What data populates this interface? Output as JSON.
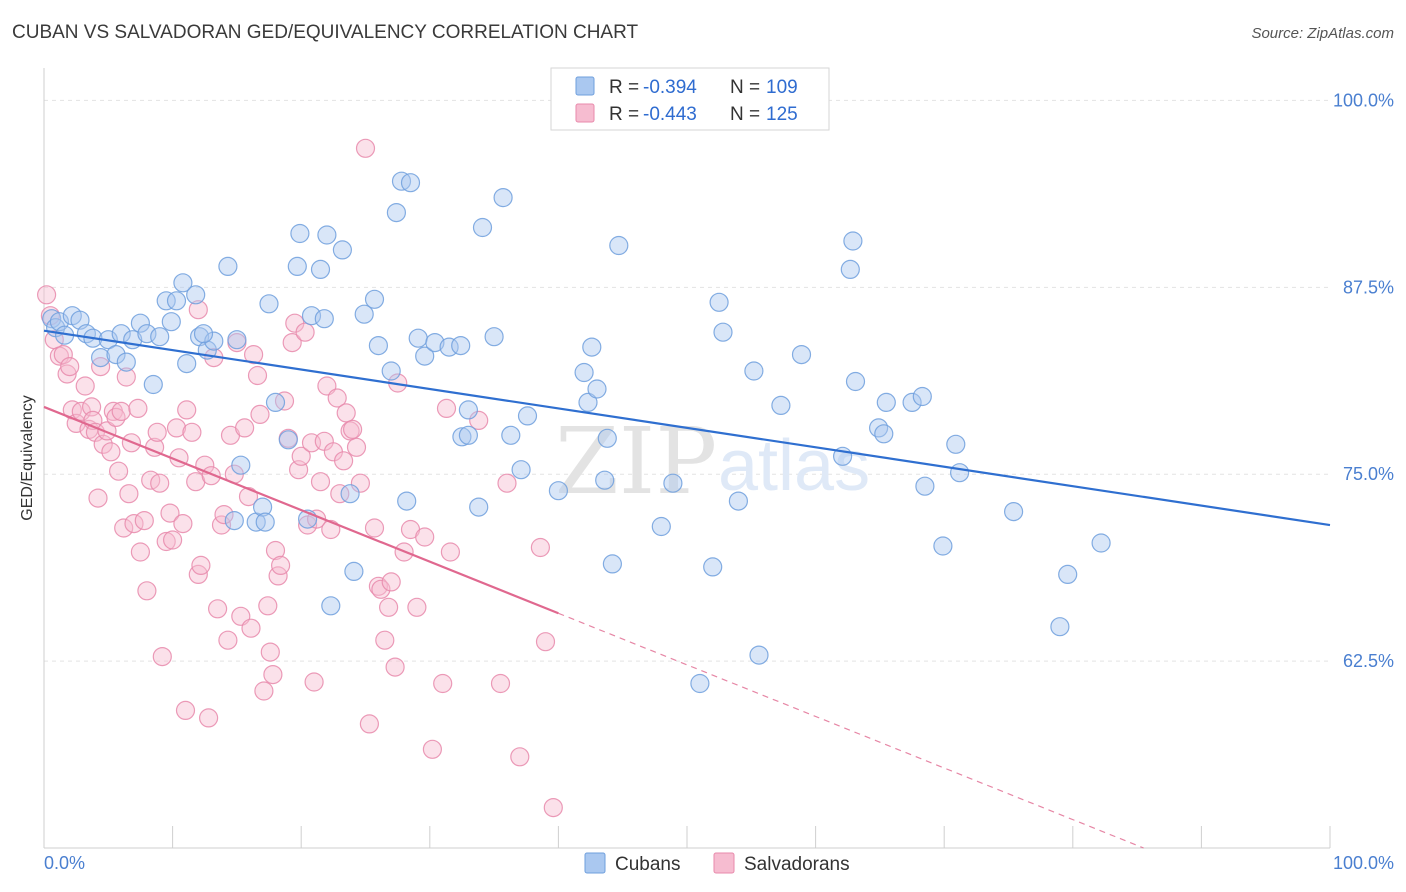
{
  "title": "CUBAN VS SALVADORAN GED/EQUIVALENCY CORRELATION CHART",
  "source": "Source: ZipAtlas.com",
  "watermark": {
    "zip": "ZIP",
    "atlas": "atlas"
  },
  "legend": {
    "r_label": "R =",
    "n_label": "N =",
    "rows": [
      {
        "series": "Cubans",
        "r": "-0.394",
        "n": "109"
      },
      {
        "series": "Salvadorans",
        "r": "-0.443",
        "n": "125"
      }
    ]
  },
  "colors": {
    "cubans_fill": "#aac8f0",
    "cubans_stroke": "#6f9fdd",
    "cubans_line": "#2f6fd0",
    "salv_fill": "#f6bcd0",
    "salv_stroke": "#e88aab",
    "salv_line": "#e0688f",
    "grid": "#e3e3e3",
    "tick_text": "#4a7fd0"
  },
  "chart_data": {
    "type": "scatter",
    "title": "CUBAN VS SALVADORAN GED/EQUIVALENCY CORRELATION CHART",
    "xlabel": "",
    "ylabel": "GED/Equivalency",
    "xlim": [
      0,
      100
    ],
    "ylim": [
      50,
      101.5
    ],
    "x_tick_labels": {
      "min": "0.0%",
      "max": "100.0%"
    },
    "y_ticks": [
      {
        "value": 100,
        "label": "100.0%"
      },
      {
        "value": 87.5,
        "label": "87.5%"
      },
      {
        "value": 75,
        "label": "75.0%"
      },
      {
        "value": 62.5,
        "label": "62.5%"
      }
    ],
    "grid": true,
    "legend_position": "top-center",
    "series": [
      {
        "name": "Cubans",
        "r": -0.394,
        "n": 109,
        "trend": {
          "x0": 0,
          "y0": 84.6,
          "x1": 100,
          "y1": 71.6
        },
        "points": [
          [
            0.6,
            85.4
          ],
          [
            0.9,
            84.8
          ],
          [
            1.2,
            85.2
          ],
          [
            1.6,
            84.3
          ],
          [
            2.2,
            85.6
          ],
          [
            2.8,
            85.3
          ],
          [
            3.3,
            84.4
          ],
          [
            3.8,
            84.1
          ],
          [
            4.4,
            82.8
          ],
          [
            5.0,
            84.0
          ],
          [
            5.6,
            83.0
          ],
          [
            6.0,
            84.4
          ],
          [
            6.4,
            82.5
          ],
          [
            6.9,
            84.0
          ],
          [
            7.5,
            85.1
          ],
          [
            8.0,
            84.4
          ],
          [
            8.5,
            81.0
          ],
          [
            9.0,
            84.2
          ],
          [
            9.5,
            86.6
          ],
          [
            9.9,
            85.2
          ],
          [
            10.3,
            86.6
          ],
          [
            10.8,
            87.8
          ],
          [
            11.1,
            82.4
          ],
          [
            11.8,
            87.0
          ],
          [
            12.1,
            84.2
          ],
          [
            12.7,
            83.3
          ],
          [
            13.2,
            83.9
          ],
          [
            14.3,
            88.9
          ],
          [
            15.0,
            84.0
          ],
          [
            15.3,
            75.6
          ],
          [
            14.8,
            71.9
          ],
          [
            16.5,
            71.8
          ],
          [
            17.0,
            72.8
          ],
          [
            17.5,
            86.4
          ],
          [
            18.0,
            79.8
          ],
          [
            19.0,
            77.3
          ],
          [
            19.7,
            88.9
          ],
          [
            19.9,
            91.1
          ],
          [
            20.5,
            72.0
          ],
          [
            20.8,
            85.6
          ],
          [
            21.5,
            88.7
          ],
          [
            21.8,
            85.4
          ],
          [
            22.3,
            66.2
          ],
          [
            23.2,
            90.0
          ],
          [
            23.8,
            73.7
          ],
          [
            24.1,
            68.5
          ],
          [
            24.9,
            85.7
          ],
          [
            25.7,
            86.7
          ],
          [
            26.0,
            83.6
          ],
          [
            27.0,
            81.9
          ],
          [
            27.4,
            92.5
          ],
          [
            27.8,
            94.6
          ],
          [
            28.5,
            94.5
          ],
          [
            28.2,
            73.2
          ],
          [
            29.1,
            84.1
          ],
          [
            29.6,
            82.9
          ],
          [
            30.4,
            83.8
          ],
          [
            31.5,
            83.5
          ],
          [
            32.4,
            83.6
          ],
          [
            32.5,
            77.5
          ],
          [
            33.0,
            79.3
          ],
          [
            34.1,
            91.5
          ],
          [
            33.8,
            72.8
          ],
          [
            35.0,
            84.2
          ],
          [
            35.7,
            93.5
          ],
          [
            36.3,
            77.6
          ],
          [
            37.1,
            75.3
          ],
          [
            37.6,
            78.9
          ],
          [
            40.0,
            73.9
          ],
          [
            42.0,
            81.8
          ],
          [
            42.3,
            79.8
          ],
          [
            42.6,
            83.5
          ],
          [
            43.0,
            80.7
          ],
          [
            43.6,
            74.6
          ],
          [
            43.8,
            77.4
          ],
          [
            44.2,
            69.0
          ],
          [
            44.7,
            90.3
          ],
          [
            48.0,
            71.5
          ],
          [
            48.9,
            74.4
          ],
          [
            52.0,
            68.8
          ],
          [
            52.5,
            86.5
          ],
          [
            52.8,
            84.5
          ],
          [
            54.0,
            73.2
          ],
          [
            55.2,
            81.9
          ],
          [
            55.6,
            62.9
          ],
          [
            57.3,
            79.6
          ],
          [
            58.9,
            83.0
          ],
          [
            62.1,
            76.2
          ],
          [
            62.7,
            88.7
          ],
          [
            62.9,
            90.6
          ],
          [
            63.1,
            81.2
          ],
          [
            64.9,
            78.1
          ],
          [
            65.3,
            77.7
          ],
          [
            65.5,
            79.8
          ],
          [
            67.5,
            79.8
          ],
          [
            68.3,
            80.2
          ],
          [
            68.5,
            74.2
          ],
          [
            69.9,
            70.2
          ],
          [
            70.9,
            77.0
          ],
          [
            71.2,
            75.1
          ],
          [
            75.4,
            72.5
          ],
          [
            79.0,
            64.8
          ],
          [
            79.6,
            68.3
          ],
          [
            82.2,
            70.4
          ],
          [
            12.4,
            84.4
          ],
          [
            22.0,
            91.0
          ],
          [
            33.0,
            77.6
          ],
          [
            51.0,
            61.0
          ],
          [
            17.2,
            71.8
          ]
        ]
      },
      {
        "name": "Salvadorans",
        "r": -0.443,
        "n": 125,
        "trend": {
          "x0": 0,
          "y0": 79.5,
          "x1": 40,
          "y1": 65.7,
          "dashed_to": {
            "x": 100,
            "y": 44.5
          }
        },
        "points": [
          [
            0.2,
            87.0
          ],
          [
            0.5,
            85.6
          ],
          [
            0.8,
            84.0
          ],
          [
            1.2,
            82.9
          ],
          [
            1.5,
            83.0
          ],
          [
            1.8,
            81.7
          ],
          [
            2.0,
            82.2
          ],
          [
            2.2,
            79.3
          ],
          [
            2.5,
            78.4
          ],
          [
            2.9,
            79.2
          ],
          [
            3.2,
            80.9
          ],
          [
            3.5,
            78.0
          ],
          [
            3.7,
            79.5
          ],
          [
            3.8,
            78.6
          ],
          [
            4.0,
            77.8
          ],
          [
            4.2,
            73.4
          ],
          [
            4.4,
            82.2
          ],
          [
            4.6,
            77.0
          ],
          [
            4.9,
            77.9
          ],
          [
            5.2,
            76.5
          ],
          [
            5.4,
            79.2
          ],
          [
            5.6,
            78.8
          ],
          [
            5.8,
            75.2
          ],
          [
            6.0,
            79.2
          ],
          [
            6.2,
            71.4
          ],
          [
            6.4,
            81.5
          ],
          [
            6.6,
            73.7
          ],
          [
            6.8,
            77.1
          ],
          [
            7.0,
            71.7
          ],
          [
            7.3,
            79.4
          ],
          [
            7.5,
            69.8
          ],
          [
            7.8,
            71.9
          ],
          [
            8.0,
            67.2
          ],
          [
            8.3,
            74.6
          ],
          [
            8.6,
            76.8
          ],
          [
            8.8,
            77.8
          ],
          [
            9.0,
            74.4
          ],
          [
            9.2,
            62.8
          ],
          [
            9.5,
            70.5
          ],
          [
            9.8,
            72.4
          ],
          [
            10.0,
            70.6
          ],
          [
            10.3,
            78.1
          ],
          [
            10.5,
            76.1
          ],
          [
            10.8,
            71.7
          ],
          [
            11.0,
            59.2
          ],
          [
            11.1,
            79.3
          ],
          [
            11.5,
            77.8
          ],
          [
            11.8,
            74.5
          ],
          [
            12.0,
            68.3
          ],
          [
            12.2,
            68.9
          ],
          [
            12.5,
            75.6
          ],
          [
            12.8,
            58.7
          ],
          [
            13.0,
            74.9
          ],
          [
            13.2,
            82.8
          ],
          [
            13.5,
            66.0
          ],
          [
            13.8,
            71.6
          ],
          [
            14.0,
            72.3
          ],
          [
            14.3,
            63.9
          ],
          [
            14.5,
            77.6
          ],
          [
            14.8,
            75.0
          ],
          [
            15.0,
            83.8
          ],
          [
            15.3,
            65.5
          ],
          [
            15.6,
            78.1
          ],
          [
            15.9,
            73.5
          ],
          [
            16.1,
            64.7
          ],
          [
            16.3,
            83.0
          ],
          [
            16.6,
            81.6
          ],
          [
            16.8,
            79.0
          ],
          [
            17.1,
            60.5
          ],
          [
            17.4,
            66.2
          ],
          [
            17.6,
            63.1
          ],
          [
            17.8,
            61.6
          ],
          [
            18.0,
            69.9
          ],
          [
            18.2,
            68.2
          ],
          [
            18.4,
            68.9
          ],
          [
            18.7,
            79.9
          ],
          [
            19.0,
            77.4
          ],
          [
            19.3,
            83.8
          ],
          [
            19.5,
            85.1
          ],
          [
            19.8,
            75.3
          ],
          [
            20.0,
            76.2
          ],
          [
            20.3,
            84.5
          ],
          [
            20.5,
            71.6
          ],
          [
            20.8,
            77.1
          ],
          [
            21.0,
            61.1
          ],
          [
            21.2,
            72.0
          ],
          [
            21.5,
            74.5
          ],
          [
            21.8,
            77.2
          ],
          [
            22.0,
            80.9
          ],
          [
            22.3,
            71.3
          ],
          [
            22.5,
            76.5
          ],
          [
            22.8,
            80.1
          ],
          [
            23.0,
            73.7
          ],
          [
            23.3,
            75.9
          ],
          [
            23.5,
            79.1
          ],
          [
            23.8,
            77.9
          ],
          [
            24.0,
            78.0
          ],
          [
            24.3,
            76.8
          ],
          [
            24.6,
            74.4
          ],
          [
            25.0,
            96.8
          ],
          [
            25.3,
            58.3
          ],
          [
            25.7,
            71.4
          ],
          [
            26.0,
            67.5
          ],
          [
            26.2,
            67.3
          ],
          [
            26.5,
            63.9
          ],
          [
            26.8,
            66.1
          ],
          [
            27.0,
            67.8
          ],
          [
            27.3,
            62.1
          ],
          [
            27.5,
            81.1
          ],
          [
            28.0,
            69.8
          ],
          [
            28.5,
            71.3
          ],
          [
            29.0,
            66.1
          ],
          [
            29.6,
            70.8
          ],
          [
            30.2,
            56.6
          ],
          [
            31.0,
            61.0
          ],
          [
            31.3,
            79.4
          ],
          [
            31.6,
            69.8
          ],
          [
            33.8,
            78.6
          ],
          [
            35.5,
            61.0
          ],
          [
            36.0,
            74.4
          ],
          [
            37.0,
            56.1
          ],
          [
            38.6,
            70.1
          ],
          [
            39.0,
            63.8
          ],
          [
            39.6,
            52.7
          ],
          [
            12.0,
            86.0
          ]
        ]
      }
    ]
  }
}
